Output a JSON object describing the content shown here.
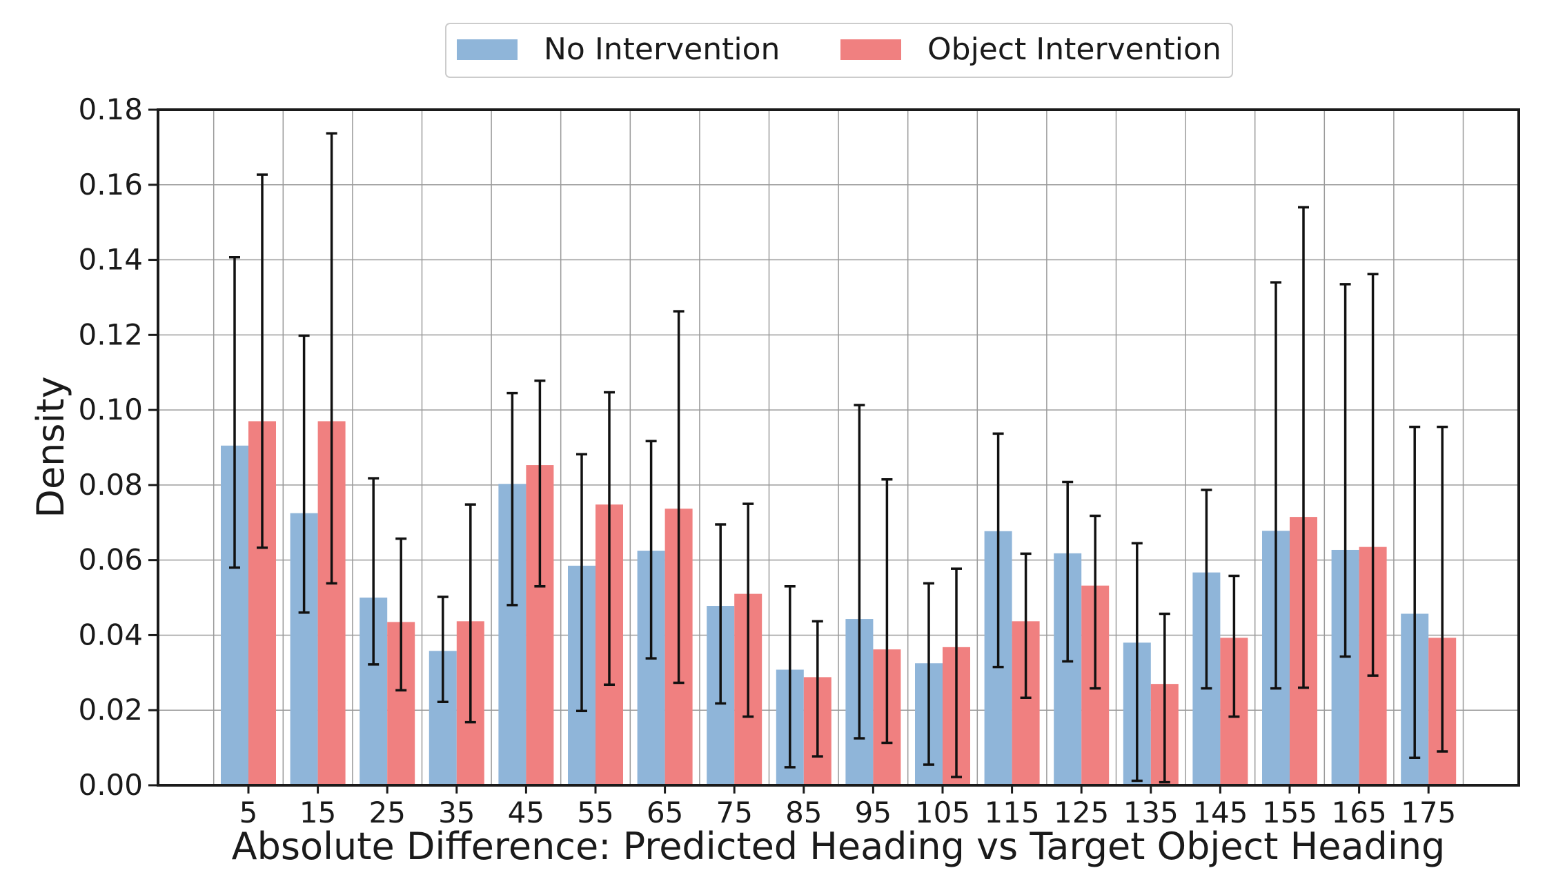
{
  "chart_data": {
    "type": "bar",
    "xlabel": "Absolute Difference: Predicted Heading vs Target Object Heading",
    "ylabel": "Density",
    "ylim": [
      0,
      0.18
    ],
    "yticks": [
      "0.00",
      "0.02",
      "0.04",
      "0.06",
      "0.08",
      "0.10",
      "0.12",
      "0.14",
      "0.16",
      "0.18"
    ],
    "categories": [
      "5",
      "15",
      "25",
      "35",
      "45",
      "55",
      "65",
      "75",
      "85",
      "95",
      "105",
      "115",
      "125",
      "135",
      "145",
      "155",
      "165",
      "175"
    ],
    "grid": true,
    "legend_position": "top-center",
    "series": [
      {
        "name": "No Intervention",
        "color": "#8fb5d9",
        "values": [
          0.0905,
          0.0725,
          0.05,
          0.0358,
          0.0803,
          0.0585,
          0.0625,
          0.0478,
          0.0308,
          0.0443,
          0.0325,
          0.0677,
          0.0618,
          0.038,
          0.0567,
          0.0678,
          0.0627,
          0.0457
        ],
        "err_low": [
          0.058,
          0.046,
          0.0322,
          0.0222,
          0.048,
          0.0198,
          0.0338,
          0.0218,
          0.0048,
          0.0125,
          0.0055,
          0.0315,
          0.033,
          0.0012,
          0.0258,
          0.0258,
          0.0343,
          0.0073
        ],
        "err_high": [
          0.1407,
          0.1198,
          0.0818,
          0.0502,
          0.1045,
          0.0882,
          0.0917,
          0.0695,
          0.053,
          0.1013,
          0.0538,
          0.0937,
          0.0808,
          0.0645,
          0.0787,
          0.134,
          0.1335,
          0.0955
        ]
      },
      {
        "name": "Object Intervention",
        "color": "#f08080",
        "values": [
          0.097,
          0.097,
          0.0435,
          0.0437,
          0.0853,
          0.0748,
          0.0737,
          0.051,
          0.0288,
          0.0362,
          0.0368,
          0.0437,
          0.0532,
          0.027,
          0.0393,
          0.0715,
          0.0635,
          0.0393
        ],
        "err_low": [
          0.0633,
          0.0538,
          0.0253,
          0.0168,
          0.053,
          0.0268,
          0.0273,
          0.0183,
          0.0077,
          0.0113,
          0.0022,
          0.0233,
          0.0258,
          0.0008,
          0.0183,
          0.026,
          0.0292,
          0.009
        ],
        "err_high": [
          0.1627,
          0.1737,
          0.0657,
          0.0748,
          0.1078,
          0.1047,
          0.1263,
          0.075,
          0.0437,
          0.0815,
          0.0577,
          0.0617,
          0.0718,
          0.0457,
          0.0558,
          0.154,
          0.1362,
          0.0955
        ]
      }
    ]
  }
}
